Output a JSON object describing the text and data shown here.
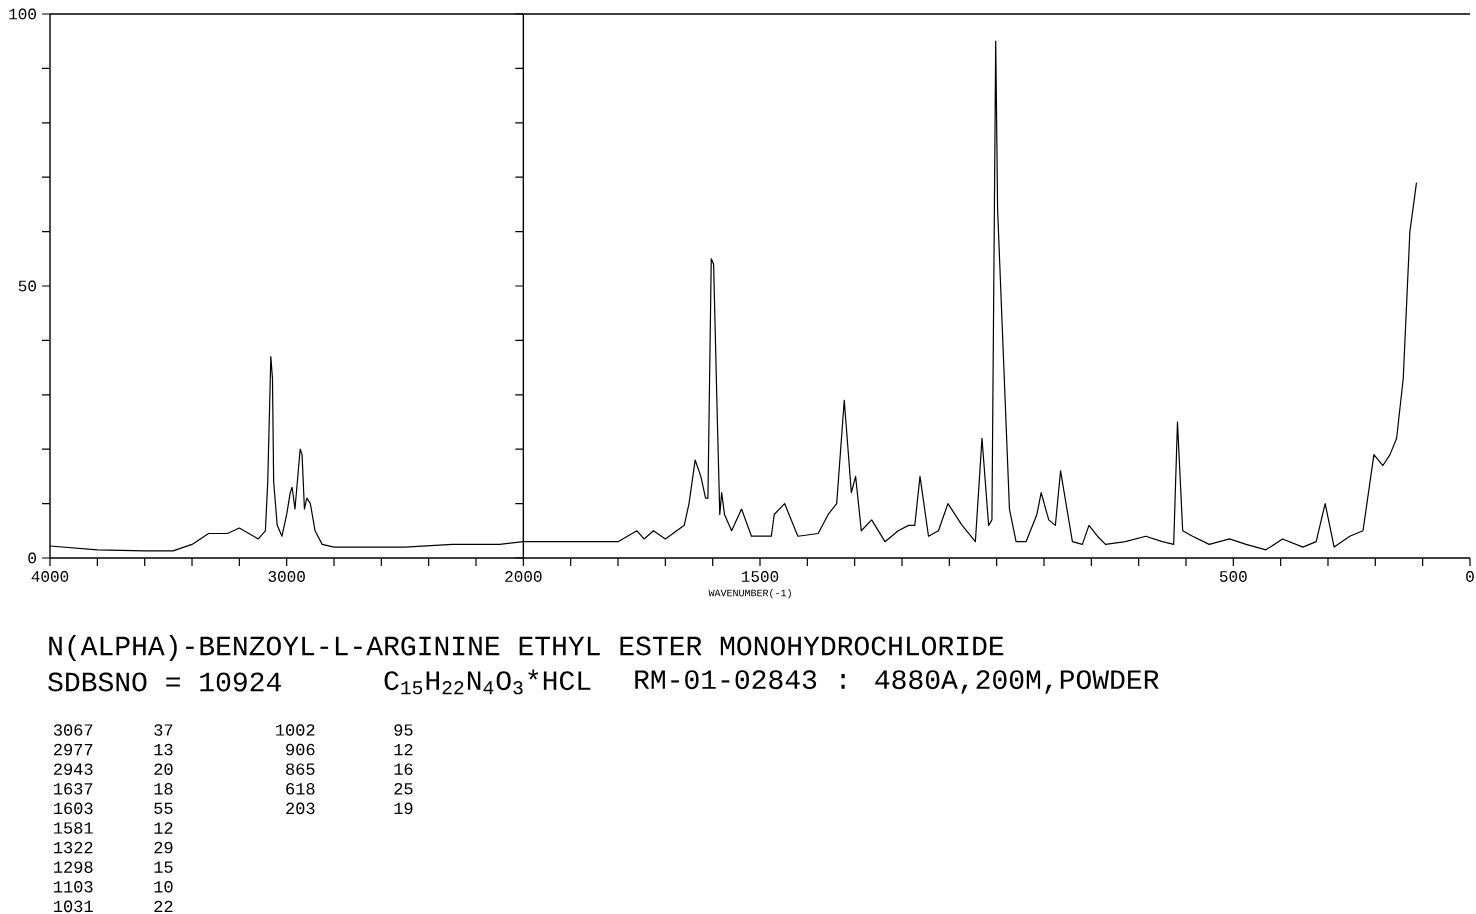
{
  "chart_data": [
    {
      "type": "line",
      "title": "N(ALPHA)-BENZOYL-L-ARGININE ETHYL ESTER MONOHYDROCHLORIDE",
      "subtitle": "SDBSNO = 10924",
      "x": [
        4000,
        3800,
        3600,
        3480,
        3400,
        3330,
        3250,
        3200,
        3120,
        3090,
        3080,
        3067,
        3060,
        3055,
        3040,
        3020,
        3000,
        2985,
        2977,
        2965,
        2943,
        2935,
        2925,
        2915,
        2900,
        2880,
        2850,
        2800,
        2500,
        2300,
        2100,
        2000
      ],
      "values": [
        2.2,
        1.5,
        1.3,
        1.3,
        2.5,
        4.5,
        4.5,
        5.5,
        3.5,
        5,
        14,
        37,
        33,
        14,
        6,
        4,
        8,
        12,
        13,
        9,
        20,
        19,
        9,
        11,
        10,
        5,
        2.5,
        2,
        2,
        2.5,
        2.5,
        3
      ],
      "color": "#000000",
      "xlim": [
        4000,
        2000
      ],
      "xticks": [
        4000,
        {
          "value": 3800,
          "label": null
        },
        {
          "value": 3600,
          "label": null
        },
        {
          "value": 3400,
          "label": null
        },
        {
          "value": 3200,
          "label": null
        },
        3000,
        {
          "value": 2800,
          "label": null
        },
        {
          "value": 2600,
          "label": null
        },
        {
          "value": 2400,
          "label": null
        },
        {
          "value": 2200,
          "label": null
        }
      ],
      "ylim": [
        0,
        100
      ],
      "yticks": [
        0,
        {
          "value": 10,
          "label": null
        },
        {
          "value": 20,
          "label": null
        },
        {
          "value": 30,
          "label": null
        },
        {
          "value": 40,
          "label": null
        },
        50,
        {
          "value": 60,
          "label": null
        },
        {
          "value": 70,
          "label": null
        },
        {
          "value": 80,
          "label": null
        },
        {
          "value": 90,
          "label": null
        },
        100
      ],
      "annotations": [
        "C$_{15}$H$_{22}$N$_{4}$O$_{3}$*HCL",
        "RM-01-02843 : 4880A,200M,POWDER",
        "3067",
        "37",
        "2977",
        "13",
        "2943",
        "20",
        "1637",
        "18",
        "1603",
        "55",
        "1581",
        "12",
        "1322",
        "29",
        "1298",
        "15",
        "1103",
        "10",
        "1031",
        "22",
        "1002",
        "95",
        "906",
        "12",
        "865",
        "16",
        "618",
        "25",
        "203",
        "19"
      ]
    },
    {
      "type": "line",
      "xlabel": "WAVENUMBER(-1)",
      "x": [
        2000,
        1800,
        1760,
        1745,
        1725,
        1700,
        1660,
        1650,
        1637,
        1625,
        1615,
        1610,
        1603,
        1598,
        1590,
        1585,
        1581,
        1575,
        1560,
        1539,
        1518,
        1476,
        1470,
        1448,
        1420,
        1377,
        1356,
        1338,
        1322,
        1307,
        1298,
        1286,
        1264,
        1236,
        1208,
        1186,
        1173,
        1162,
        1144,
        1123,
        1103,
        1073,
        1045,
        1031,
        1017,
        1010,
        1002,
        998,
        973,
        959,
        938,
        915,
        906,
        890,
        876,
        865,
        840,
        819,
        805,
        787,
        770,
        728,
        685,
        650,
        626,
        618,
        607,
        586,
        551,
        508,
        473,
        431,
        396,
        353,
        325,
        306,
        287,
        254,
        226,
        203,
        184,
        169,
        155,
        141,
        127,
        113
      ],
      "values": [
        3,
        3,
        5,
        3.5,
        5,
        3.5,
        6,
        10,
        18,
        15,
        11,
        11,
        55,
        54,
        25,
        8,
        12,
        8,
        5,
        9,
        4,
        4,
        8,
        10,
        4,
        4.5,
        8,
        10,
        29,
        12,
        15,
        5,
        7,
        3,
        5,
        6,
        6,
        15,
        4,
        5,
        10,
        6,
        3,
        22,
        6,
        7,
        95,
        64,
        9,
        3,
        3,
        8,
        12,
        7,
        6,
        16,
        3,
        2.5,
        6,
        4,
        2.5,
        3,
        4,
        3,
        2.5,
        25,
        5,
        4,
        2.5,
        3.5,
        2.5,
        1.5,
        3.5,
        2,
        3,
        10,
        2,
        4,
        5,
        19,
        17,
        19,
        22,
        33,
        60,
        69
      ],
      "color": "#000000",
      "xlim": [
        2000,
        0
      ],
      "xticks": [
        2000,
        {
          "value": 1900,
          "label": null
        },
        {
          "value": 1800,
          "label": null
        },
        {
          "value": 1700,
          "label": null
        },
        {
          "value": 1600,
          "label": null
        },
        1500,
        {
          "value": 1400,
          "label": null
        },
        {
          "value": 1300,
          "label": null
        },
        {
          "value": 1200,
          "label": null
        },
        {
          "value": 1100,
          "label": null
        },
        {
          "value": 1000,
          "label": null
        },
        {
          "value": 900,
          "label": null
        },
        {
          "value": 800,
          "label": null
        },
        {
          "value": 700,
          "label": null
        },
        {
          "value": 600,
          "label": null
        },
        500,
        {
          "value": 400,
          "label": null
        },
        {
          "value": 300,
          "label": null
        },
        {
          "value": 200,
          "label": null
        },
        {
          "value": 100,
          "label": null
        },
        0
      ],
      "ylim": [
        0,
        100
      ],
      "tick_labels": "x"
    }
  ]
}
